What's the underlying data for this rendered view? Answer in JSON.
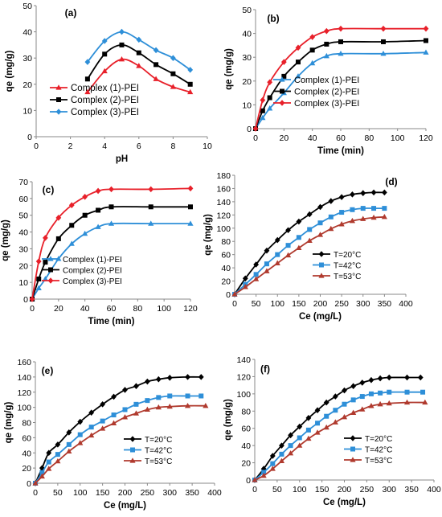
{
  "chart_data": [
    {
      "type": "line",
      "panel_label": "(a)",
      "xlabel": "pH",
      "ylabel": "qe (mg/g)",
      "xlim": [
        0,
        10
      ],
      "ylim": [
        0,
        50
      ],
      "xticks": [
        "0",
        "2",
        "4",
        "6",
        "8",
        "10"
      ],
      "yticks": [
        "0",
        "10",
        "20",
        "30",
        "40",
        "50"
      ],
      "grid": false,
      "legend": "bottom-left",
      "series": [
        {
          "name": "Complex (1)-PEI",
          "color": "#e8202a",
          "marker": "triangle",
          "x": [
            3,
            4,
            5,
            6,
            7,
            8,
            9
          ],
          "y": [
            17,
            25,
            29.5,
            27,
            22,
            19,
            17
          ]
        },
        {
          "name": "Complex (2)-PEI",
          "color": "#000000",
          "marker": "square",
          "x": [
            3,
            4,
            5,
            6,
            7,
            8,
            9
          ],
          "y": [
            22,
            31.5,
            35,
            32,
            27.5,
            24,
            20
          ]
        },
        {
          "name": "Complex (3)-PEI",
          "color": "#2e8fd8",
          "marker": "diamond",
          "x": [
            3,
            4,
            5,
            6,
            7,
            8,
            9
          ],
          "y": [
            28.5,
            36.5,
            40,
            37,
            33,
            30,
            25.5
          ]
        }
      ]
    },
    {
      "type": "line",
      "panel_label": "(b)",
      "xlabel": "Time (min)",
      "ylabel": "qe (mg/g)",
      "xlim": [
        0,
        120
      ],
      "ylim": [
        0,
        50
      ],
      "xticks": [
        "0",
        "20",
        "40",
        "60",
        "80",
        "100",
        "120"
      ],
      "yticks": [
        "0",
        "10",
        "20",
        "30",
        "40",
        "50"
      ],
      "grid": false,
      "legend": "bottom-right",
      "series": [
        {
          "name": "Complex (1)-PEI",
          "color": "#2e8fd8",
          "marker": "triangle",
          "x": [
            0,
            5,
            10,
            20,
            30,
            40,
            50,
            60,
            90,
            120
          ],
          "y": [
            0,
            4.5,
            8.5,
            15,
            22,
            27.5,
            30.5,
            31.5,
            31.5,
            32
          ]
        },
        {
          "name": "Complex (2)-PEI",
          "color": "#000000",
          "marker": "square",
          "x": [
            0,
            5,
            10,
            20,
            30,
            40,
            50,
            60,
            90,
            120
          ],
          "y": [
            0,
            7.5,
            13,
            22,
            28,
            33,
            35.5,
            36.5,
            36.5,
            37
          ]
        },
        {
          "name": "Complex (3)-PEI",
          "color": "#e8202a",
          "marker": "diamond",
          "x": [
            0,
            5,
            10,
            20,
            30,
            40,
            50,
            60,
            90,
            120
          ],
          "y": [
            0,
            12,
            19.5,
            28,
            34,
            38.5,
            41,
            42,
            42,
            42
          ]
        }
      ]
    },
    {
      "type": "line",
      "panel_label": "(c)",
      "xlabel": "Time (min)",
      "ylabel": "qe (mg/g)",
      "xlim": [
        0,
        120
      ],
      "ylim": [
        0,
        70
      ],
      "xticks": [
        "0",
        "20",
        "40",
        "60",
        "80",
        "100",
        "120"
      ],
      "yticks": [
        "0",
        "10",
        "20",
        "30",
        "40",
        "50",
        "60",
        "70"
      ],
      "grid": false,
      "legend": "bottom-right",
      "series": [
        {
          "name": "Complex (1)-PEI",
          "color": "#2e8fd8",
          "marker": "triangle",
          "x": [
            0,
            5,
            10,
            20,
            30,
            40,
            50,
            60,
            90,
            120
          ],
          "y": [
            0,
            6.5,
            12,
            24,
            33,
            39,
            43,
            45,
            45,
            45
          ]
        },
        {
          "name": "Complex (2)-PEI",
          "color": "#000000",
          "marker": "square",
          "x": [
            0,
            5,
            10,
            20,
            30,
            40,
            50,
            60,
            90,
            120
          ],
          "y": [
            0,
            12,
            22,
            36,
            44,
            50,
            53,
            55,
            55,
            55
          ]
        },
        {
          "name": "Complex (3)-PEI",
          "color": "#e8202a",
          "marker": "diamond",
          "x": [
            0,
            5,
            10,
            20,
            30,
            40,
            50,
            60,
            90,
            120
          ],
          "y": [
            0,
            22.5,
            36.5,
            48.5,
            56,
            61,
            64.5,
            65.5,
            65.5,
            66
          ]
        }
      ]
    },
    {
      "type": "line",
      "panel_label": "(d)",
      "xlabel": "Ce (mg/L)",
      "ylabel": "qe (mg/g)",
      "xlim": [
        0,
        400
      ],
      "ylim": [
        0,
        180
      ],
      "xticks": [
        "0",
        "50",
        "100",
        "150",
        "200",
        "250",
        "300",
        "350",
        "400"
      ],
      "yticks": [
        "0",
        "20",
        "40",
        "60",
        "80",
        "100",
        "120",
        "140",
        "160",
        "180"
      ],
      "grid": false,
      "legend": "bottom-right",
      "series": [
        {
          "name": "T=20°C",
          "color": "#000000",
          "marker": "diamond",
          "x": [
            0,
            25,
            50,
            75,
            100,
            125,
            150,
            175,
            200,
            225,
            250,
            275,
            300,
            325,
            350
          ],
          "y": [
            0,
            24,
            45,
            66,
            82,
            97,
            110,
            121,
            132,
            141,
            147,
            151,
            153,
            154,
            154
          ]
        },
        {
          "name": "T=42°C",
          "color": "#2e8fd8",
          "marker": "square",
          "x": [
            0,
            25,
            50,
            75,
            100,
            125,
            150,
            175,
            200,
            225,
            250,
            275,
            300,
            325,
            350
          ],
          "y": [
            0,
            15,
            30,
            46,
            60,
            74,
            86,
            98,
            108,
            117,
            124,
            128,
            130,
            130,
            130
          ]
        },
        {
          "name": "T=53°C",
          "color": "#b03a2e",
          "marker": "triangle",
          "x": [
            0,
            25,
            50,
            75,
            100,
            125,
            150,
            175,
            200,
            225,
            250,
            275,
            300,
            325,
            350
          ],
          "y": [
            0,
            11,
            23,
            35,
            47,
            59,
            70,
            81,
            90,
            99,
            106,
            111,
            114,
            116,
            117
          ]
        }
      ]
    },
    {
      "type": "line",
      "panel_label": "(e)",
      "xlabel": "Ce (mg/L)",
      "ylabel": "qe (mg/g)",
      "xlim": [
        0,
        400
      ],
      "ylim": [
        0,
        160
      ],
      "xticks": [
        "0",
        "50",
        "100",
        "150",
        "200",
        "250",
        "300",
        "350",
        "400"
      ],
      "yticks": [
        "0",
        "20",
        "40",
        "60",
        "80",
        "100",
        "120",
        "140",
        "160"
      ],
      "grid": false,
      "legend": "bottom-right",
      "series": [
        {
          "name": "T=20°C",
          "color": "#000000",
          "marker": "diamond",
          "x": [
            0,
            15,
            30,
            50,
            75,
            100,
            125,
            150,
            175,
            200,
            225,
            250,
            275,
            300,
            340,
            370
          ],
          "y": [
            0,
            20,
            40,
            51,
            67,
            81,
            93,
            104,
            114,
            123,
            128,
            134,
            137,
            139,
            140,
            140
          ]
        },
        {
          "name": "T=42°C",
          "color": "#2e8fd8",
          "marker": "square",
          "x": [
            0,
            15,
            30,
            50,
            75,
            100,
            125,
            150,
            175,
            200,
            225,
            250,
            275,
            300,
            340,
            370
          ],
          "y": [
            0,
            14,
            28,
            38,
            51,
            64,
            74,
            82,
            90,
            97,
            104,
            109,
            113,
            115,
            115,
            115
          ]
        },
        {
          "name": "T=53°C",
          "color": "#b03a2e",
          "marker": "triangle",
          "x": [
            0,
            15,
            30,
            50,
            75,
            100,
            125,
            150,
            175,
            200,
            225,
            250,
            275,
            300,
            340,
            380
          ],
          "y": [
            0,
            9,
            19,
            29,
            42,
            53,
            63,
            72,
            79,
            87,
            92,
            97,
            100,
            101,
            102,
            102
          ]
        }
      ]
    },
    {
      "type": "line",
      "panel_label": "(f)",
      "xlabel": "Ce (mg/L)",
      "ylabel": "qe (mg/g)",
      "xlim": [
        0,
        400
      ],
      "ylim": [
        0,
        140
      ],
      "xticks": [
        "0",
        "50",
        "100",
        "150",
        "200",
        "250",
        "300",
        "350",
        "400"
      ],
      "yticks": [
        "0",
        "20",
        "40",
        "60",
        "80",
        "100",
        "120",
        "140"
      ],
      "grid": false,
      "legend": "bottom-right",
      "series": [
        {
          "name": "T=20°C",
          "color": "#000000",
          "marker": "diamond",
          "x": [
            0,
            20,
            40,
            60,
            80,
            100,
            120,
            140,
            160,
            180,
            200,
            220,
            240,
            260,
            280,
            300,
            340,
            370
          ],
          "y": [
            0,
            13,
            28,
            40,
            52,
            62,
            72,
            81,
            90,
            97,
            104,
            109,
            113,
            116,
            118,
            119,
            119,
            119
          ]
        },
        {
          "name": "T=42°C",
          "color": "#2e8fd8",
          "marker": "square",
          "x": [
            0,
            20,
            40,
            60,
            80,
            100,
            120,
            140,
            160,
            180,
            200,
            220,
            240,
            260,
            280,
            300,
            340,
            375
          ],
          "y": [
            0,
            9,
            19,
            30,
            40,
            49,
            58,
            66,
            74,
            81,
            88,
            93,
            97,
            100,
            101,
            102,
            102,
            102
          ]
        },
        {
          "name": "T=53°C",
          "color": "#b03a2e",
          "marker": "triangle",
          "x": [
            0,
            20,
            40,
            60,
            80,
            100,
            120,
            140,
            160,
            180,
            200,
            220,
            240,
            260,
            280,
            300,
            340,
            380
          ],
          "y": [
            0,
            5,
            13,
            22,
            31,
            40,
            48,
            55,
            61,
            67,
            73,
            78,
            82,
            86,
            88,
            89,
            90,
            90
          ]
        }
      ]
    }
  ]
}
